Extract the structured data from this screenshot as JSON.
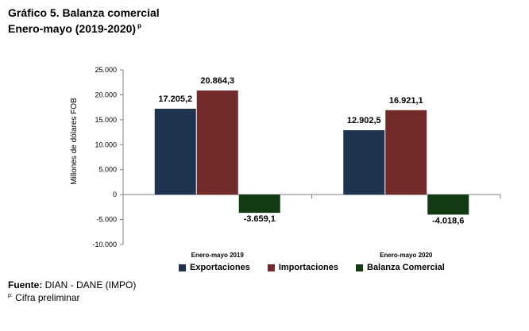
{
  "header": {
    "title": "Gráfico 5. Balanza comercial",
    "subtitle": "Enero-mayo  (2019-2020)",
    "subtitle_mark": "p"
  },
  "footer": {
    "source_label": "Fuente:",
    "source_text": " DIAN - DANE (IMPO)",
    "note_mark": "p:",
    "note_text": " Cifra preliminar"
  },
  "chart_data": {
    "type": "bar",
    "title": "",
    "xlabel": "",
    "ylabel": "Millones de dólares FOB",
    "categories": [
      "Enero-mayo 2019",
      "Enero-mayo 2020"
    ],
    "ylim": [
      -10000,
      25000
    ],
    "yticks": [
      25000,
      20000,
      15000,
      10000,
      5000,
      0,
      -5000,
      -10000
    ],
    "ytick_labels": [
      "25.000",
      "20.000",
      "15.000",
      "10.000",
      "5.000",
      "0",
      "-5.000",
      "-10.000"
    ],
    "grid": false,
    "legend_position": "bottom",
    "series": [
      {
        "name": "Exportaciones",
        "color": "#1f3350",
        "values": [
          17205.2,
          12902.5
        ],
        "labels": [
          "17.205,2",
          "12.902,5"
        ]
      },
      {
        "name": "Importaciones",
        "color": "#722a2a",
        "values": [
          20864.3,
          16921.1
        ],
        "labels": [
          "20.864,3",
          "16.921,1"
        ]
      },
      {
        "name": "Balanza Comercial",
        "color": "#133b13",
        "values": [
          -3659.1,
          -4018.6
        ],
        "labels": [
          "-3.659,1",
          "-4.018,6"
        ]
      }
    ]
  }
}
